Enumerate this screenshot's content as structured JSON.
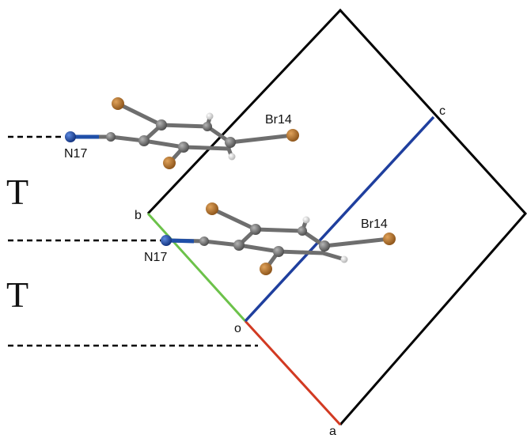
{
  "labels": {
    "axis_a": "a",
    "axis_b": "b",
    "axis_c": "c",
    "origin": "o",
    "layer_upper": "T",
    "layer_lower": "T",
    "molecule_upper_br": "Br14",
    "molecule_upper_n": "N17",
    "molecule_lower_br": "Br14",
    "molecule_lower_n": "N17"
  },
  "colors": {
    "cell_edge": "#000000",
    "axis_a": "#d23a22",
    "axis_b": "#6cc24a",
    "axis_c": "#1f3f9e",
    "carbon": "#6e6e6e",
    "bromine": "#b8732a",
    "nitrogen": "#1f4fa8",
    "hydrogen": "#e6e6e6"
  }
}
